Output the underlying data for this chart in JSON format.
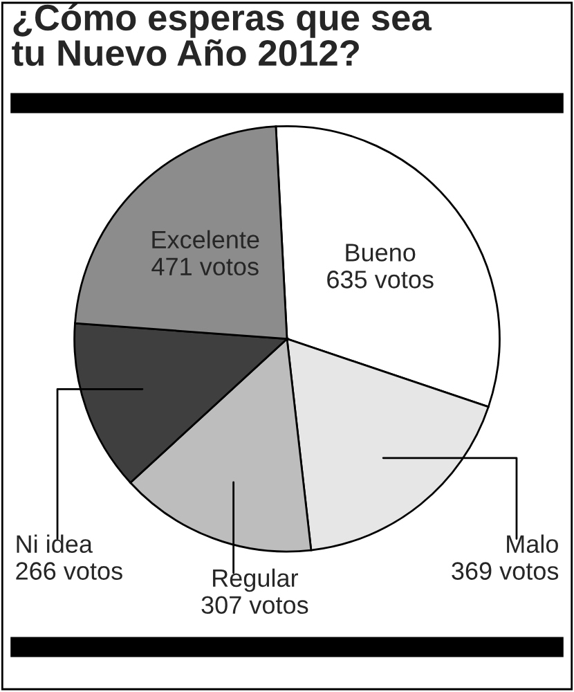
{
  "chart_data": {
    "type": "pie",
    "title": "¿Cómo esperas que sea\ntu Nuevo Año 2012?",
    "categories": [
      "Bueno",
      "Malo",
      "Regular",
      "Ni idea",
      "Excelente"
    ],
    "values": [
      635,
      369,
      307,
      266,
      471
    ],
    "value_labels": [
      "635 votos",
      "369 votos",
      "307 votos",
      "266 votos",
      "471 votos"
    ],
    "colors": [
      "#ffffff",
      "#e6e6e6",
      "#bdbdbd",
      "#3f3f3f",
      "#8c8c8c"
    ],
    "legend": false
  }
}
